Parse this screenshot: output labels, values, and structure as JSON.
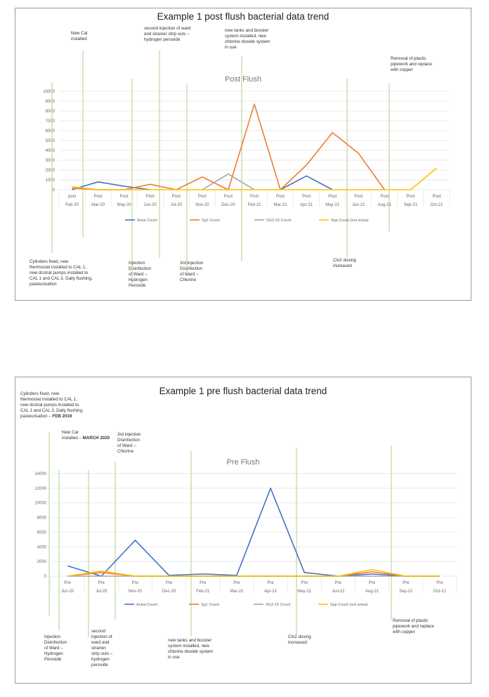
{
  "chart_data": [
    {
      "type": "line",
      "title": "Example 1 post flush bacterial data trend",
      "subtitle": "Post Flush",
      "categories": [
        "post\nFeb 20",
        "Post\nMar-20",
        "Post\nMay-20",
        "Post\nJun-20",
        "Post\nJul-20",
        "Post\nNov-20",
        "Post\nDec-20",
        "Post\nFeb-21",
        "Post\nMar-21",
        "Post\nApr-21",
        "Post\nMay-21",
        "Post\nJun-21",
        "Post\nAug-21",
        "Post\nSep-21",
        "Post\nOct-21"
      ],
      "ylim": [
        0,
        10000
      ],
      "yticks": [
        0,
        1000,
        2000,
        3000,
        4000,
        5000,
        6000,
        7000,
        8000,
        9000,
        10000
      ],
      "grid": true,
      "legend": "bottom",
      "series": [
        {
          "name": "Ansa Count",
          "color": "#4472c4",
          "values": [
            0,
            800,
            350,
            0,
            null,
            null,
            null,
            null,
            0,
            1400,
            0,
            null,
            null,
            null,
            null
          ]
        },
        {
          "name": "Sg1 Count",
          "color": "#ed7d31",
          "values": [
            150,
            0,
            0,
            550,
            0,
            1300,
            0,
            8700,
            0,
            2500,
            5800,
            3700,
            0,
            null,
            null
          ]
        },
        {
          "name": "SG2-15 Count",
          "color": "#a5a5a5",
          "values": [
            null,
            null,
            null,
            null,
            null,
            0,
            1600,
            0,
            null,
            null,
            null,
            null,
            null,
            null,
            0
          ]
        },
        {
          "name": "Spp Count (not anisa)",
          "color": "#ffc000",
          "values": [
            300,
            0,
            0,
            0,
            0,
            0,
            0,
            0,
            0,
            0,
            0,
            0,
            0,
            0,
            2200
          ]
        }
      ],
      "annotations": [
        {
          "text": "New Cal\ninstalled"
        },
        {
          "text": "second injection of ward\nand strainer strip outs –\nhydrogen peroxide"
        },
        {
          "text": "new tanks and booster\nsystem installed, new\nchlorine dioxide system\nin use"
        },
        {
          "text": "Removal of plastic\npipework and replace\nwith copper"
        },
        {
          "text": "Cylinders fixed, new\nthermostat installed to CAL 1,\nnew dcstrat pumps installed to\nCAL 1 and CAL 3. Daily flushing,\npasteurisation"
        },
        {
          "text": "Injection\nDisinfection\nof Ward –\nHydrogen\nPeroxide"
        },
        {
          "text": "3rd injection\nDisinfection\nof Ward –\nChlorine"
        },
        {
          "text": "Clo2 dosing\nincreased"
        }
      ]
    },
    {
      "type": "line",
      "title": "Example 1 pre flush bacterial data trend",
      "subtitle": "Pre Flush",
      "categories": [
        "Pre\nJun-20",
        "Pre\nJul-20",
        "Pre\nNov-20",
        "Pre\nDec-20",
        "Pre\nFeb-21",
        "Pre\nMar-21",
        "Pre\nApr-21",
        "Pre\nMay-21",
        "Pre\nJun-21",
        "Pre\nAug-21",
        "Pre\nSep-21",
        "Pre\nOct-21"
      ],
      "ylim": [
        0,
        14000
      ],
      "yticks": [
        0,
        2000,
        4000,
        6000,
        8000,
        10000,
        12000,
        14000
      ],
      "grid": true,
      "legend": "bottom",
      "series": [
        {
          "name": "Anisa Count",
          "color": "#4472c4",
          "values": [
            1400,
            0,
            4900,
            100,
            300,
            100,
            12000,
            500,
            0,
            300,
            0,
            0
          ]
        },
        {
          "name": "Sg1 Count",
          "color": "#ed7d31",
          "values": [
            0,
            500,
            0,
            0,
            0,
            0,
            0,
            0,
            0,
            600,
            0,
            0
          ]
        },
        {
          "name": "SG2-15 Count",
          "color": "#a5a5a5",
          "values": [
            0,
            0,
            0,
            0,
            0,
            0,
            0,
            0,
            0,
            0,
            0,
            0
          ]
        },
        {
          "name": "Spp Count (not anisa)",
          "color": "#ffc000",
          "values": [
            0,
            700,
            0,
            0,
            0,
            0,
            0,
            0,
            0,
            900,
            0,
            0
          ]
        }
      ],
      "annotations": [
        {
          "text": "Cylinders fixed, new\nthermostat installed to CAL 1,\nnew dcstrat pumps installed to\nCAL 1 and CAL 3. Daily flushing,\npasteurisation –",
          "bold": "FEB 2019"
        },
        {
          "text": "New Cal\ninstalled –",
          "bold": "MARCH 2020"
        },
        {
          "text": "3rd injection\nDisinfection\nof Ward –\nChlorine"
        },
        {
          "text": "Injection\nDisinfection\nof Ward –\nHydrogen\nPeroxide"
        },
        {
          "text": "second\ninjection of\nward and\nstrainer\nstrip outs –\nhydrogen\nperoxide"
        },
        {
          "text": "new tanks and booster\nsystem installed, new\nchlorine dioxide system\nin use"
        },
        {
          "text": "Clo2 dosing\nincreased"
        },
        {
          "text": "Removal of plastic\npipework and replace\nwith copper"
        }
      ]
    }
  ]
}
